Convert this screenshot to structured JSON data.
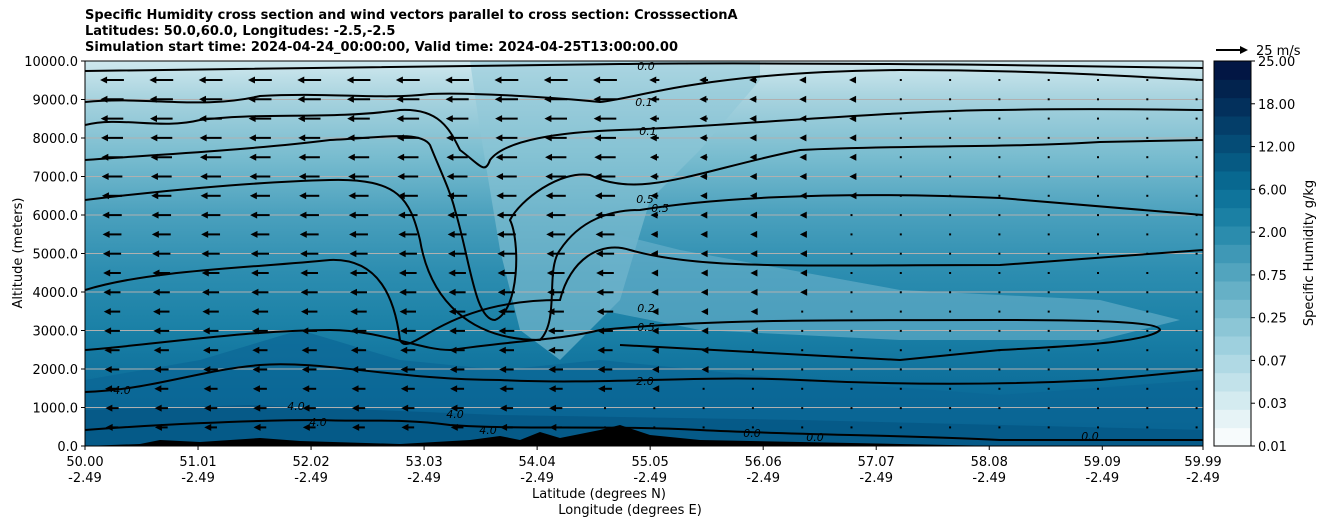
{
  "title_lines": [
    "Specific Humidity cross section and wind vectors parallel to cross section: CrosssectionA",
    "Latitudes: 50.0,60.0, Longitudes: -2.5,-2.5",
    "Simulation start time: 2024-04-24_00:00:00, Valid time: 2024-04-25T13:00:00.00"
  ],
  "chart_data": {
    "type": "heatmap",
    "ylabel": "Altitude (meters)",
    "xlabel_lines": [
      "Latitude (degrees N)",
      "Longitude (degrees E)"
    ],
    "ylim": [
      0,
      10000
    ],
    "xlim": [
      50.0,
      59.99
    ],
    "y_ticks": [
      "0.0",
      "1000.0",
      "2000.0",
      "3000.0",
      "4000.0",
      "5000.0",
      "6000.0",
      "7000.0",
      "8000.0",
      "9000.0",
      "10000.0"
    ],
    "y_tick_values": [
      0,
      1000,
      2000,
      3000,
      4000,
      5000,
      6000,
      7000,
      8000,
      9000,
      10000
    ],
    "x_ticks": [
      {
        "lat": "50.00",
        "lon": "-2.49",
        "value": 50.0
      },
      {
        "lat": "51.01",
        "lon": "-2.49",
        "value": 51.01
      },
      {
        "lat": "52.02",
        "lon": "-2.49",
        "value": 52.02
      },
      {
        "lat": "53.03",
        "lon": "-2.49",
        "value": 53.03
      },
      {
        "lat": "54.04",
        "lon": "-2.49",
        "value": 54.04
      },
      {
        "lat": "55.05",
        "lon": "-2.49",
        "value": 55.05
      },
      {
        "lat": "56.06",
        "lon": "-2.49",
        "value": 56.06
      },
      {
        "lat": "57.07",
        "lon": "-2.49",
        "value": 57.07
      },
      {
        "lat": "58.08",
        "lon": "-2.49",
        "value": 58.08
      },
      {
        "lat": "59.09",
        "lon": "-2.49",
        "value": 59.09
      },
      {
        "lat": "59.99",
        "lon": "-2.49",
        "value": 59.99
      }
    ],
    "grid": "horizontal",
    "colorbar": {
      "label": "Specific Humidity g/kg",
      "ticks": [
        "0.01",
        "0.03",
        "0.07",
        "0.25",
        "0.75",
        "2.00",
        "6.00",
        "12.00",
        "18.00",
        "25.00"
      ],
      "colors": [
        "#f7fbfc",
        "#e6f3f6",
        "#d4ebf0",
        "#c2e2ea",
        "#b0d9e4",
        "#9ed0de",
        "#8cc6d6",
        "#79bbce",
        "#66b0c6",
        "#52a4be",
        "#3f98b6",
        "#2b8cad",
        "#1b80a4",
        "#0f749b",
        "#086890",
        "#065a83",
        "#054c76",
        "#043e69",
        "#03305c",
        "#02234e",
        "#021644"
      ],
      "placement": "right"
    },
    "contour_labels": [
      "0.0",
      "0.1",
      "0.1",
      "0.5",
      "0.5",
      "0.2",
      "0.5",
      "2.0",
      "4.0",
      "4.0",
      "4.0",
      "4.0",
      "4.0",
      "0.0",
      "0.0",
      "0.0"
    ],
    "wind_reference": {
      "label": "25 m/s",
      "speed_ms": 25
    },
    "wind_direction": "southward (towards lower latitude), strongest aloft between 50.0 and 55.0 N"
  }
}
